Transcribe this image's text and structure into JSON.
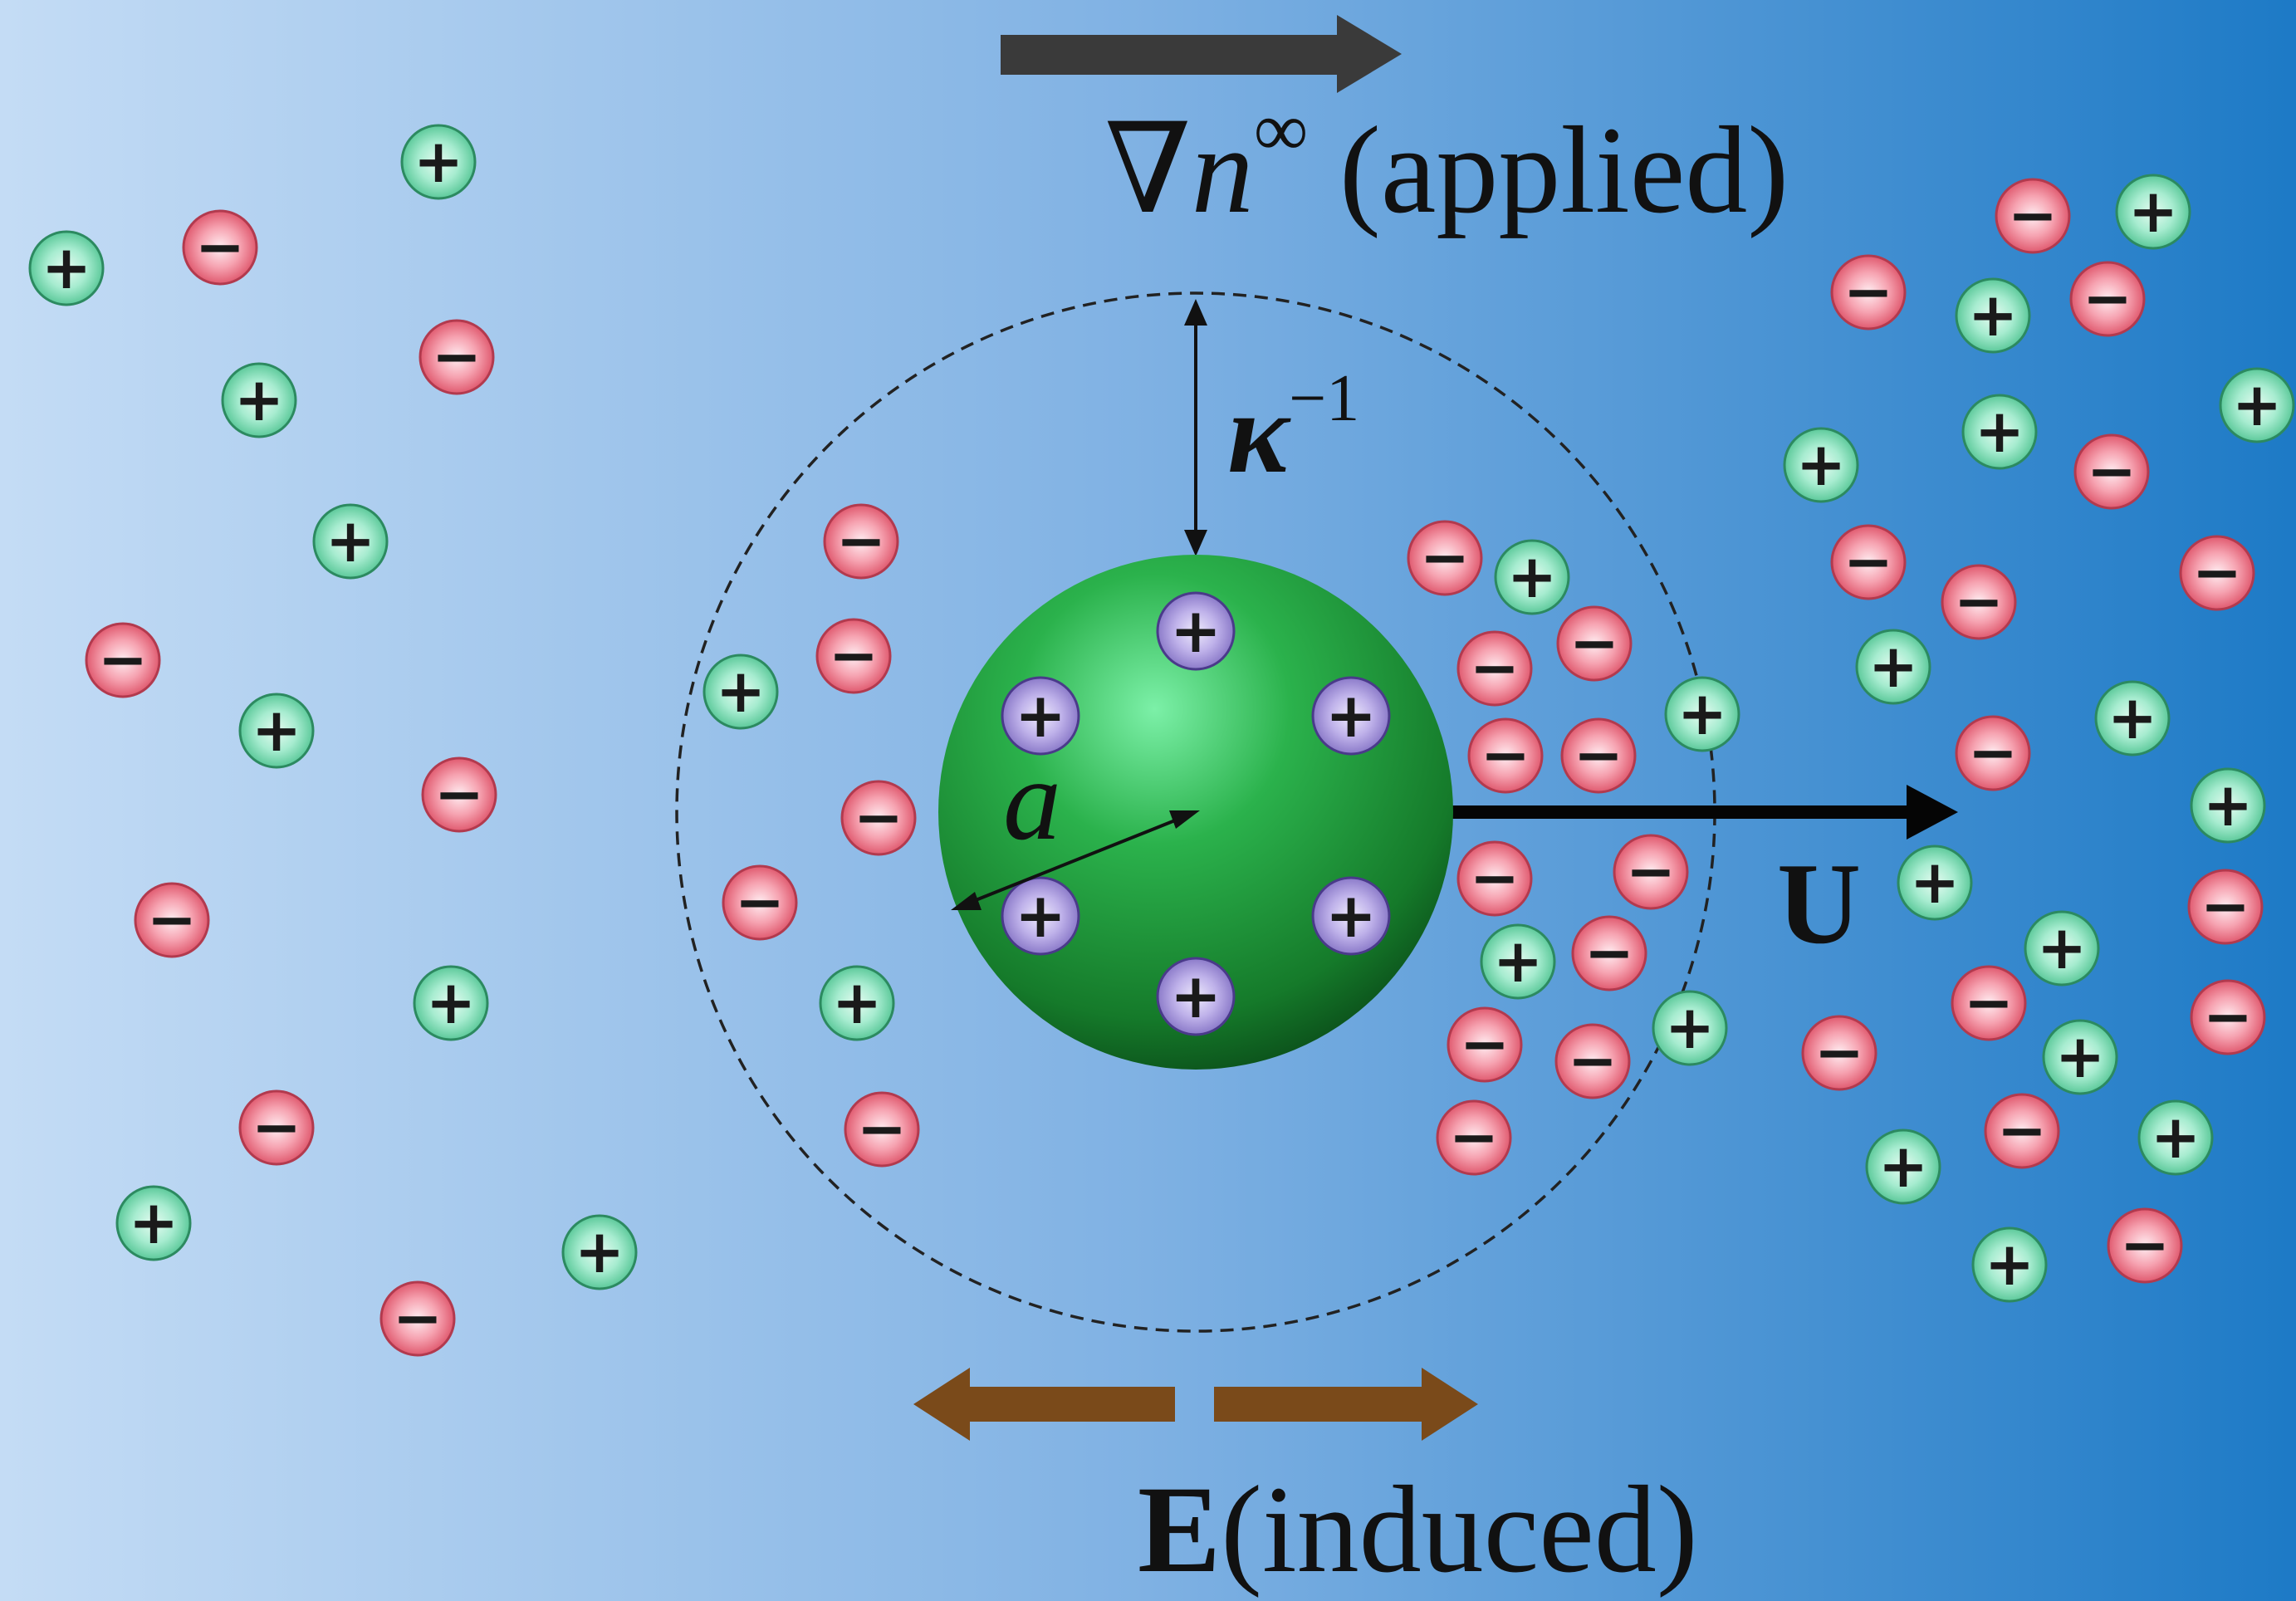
{
  "labels": {
    "gradient_symbol": "∇",
    "gradient_var": "n",
    "gradient_sup": "∞",
    "gradient_note": " (applied)",
    "debye_var": "κ",
    "debye_sup": "−1",
    "radius_var": "a",
    "velocity_var": "U",
    "field_var": "E",
    "field_note": "(induced)"
  },
  "charge_signs": {
    "plus": "+",
    "minus": "−"
  },
  "colors": {
    "background_left": "#c4dcf5",
    "background_right": "#1d7ac6",
    "particle": "#1e9a38",
    "cation": "#7fd9b0",
    "anion": "#ee6d82",
    "surface_charge": "#a898dc",
    "gradient_arrow": "#3a3a3a",
    "field_arrow": "#7a4a1a"
  },
  "icons": {
    "cation": "plus-ion-icon",
    "anion": "minus-ion-icon",
    "surface_charge": "surface-charge-icon"
  }
}
